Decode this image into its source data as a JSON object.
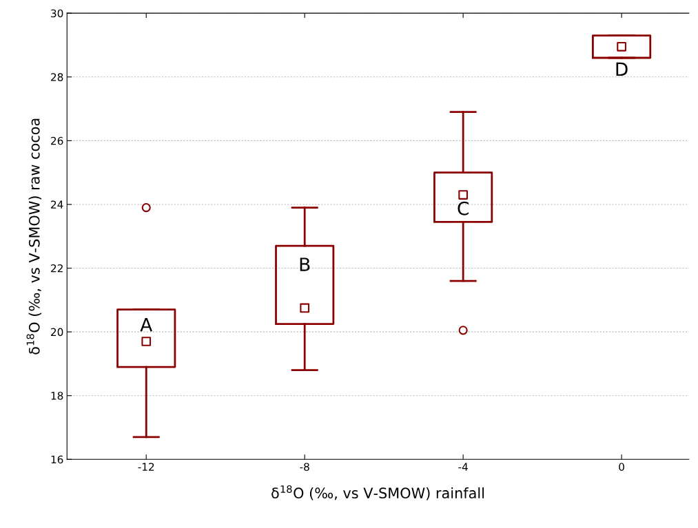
{
  "chart_data": {
    "type": "box",
    "xlabel": "δ$^{18}$O (‰, vs V-SMOW) rainfall",
    "ylabel": "δ$^{18}$O (‰, vs V-SMOW) raw cocoa",
    "x": [
      -12,
      -8,
      -4,
      0
    ],
    "series": [
      {
        "color": "#8b0000",
        "boxes": [
          {
            "low": 16.7,
            "q1": 18.9,
            "median": 19.7,
            "q3": 20.7,
            "high": 20.7,
            "outliers": [
              23.9
            ]
          },
          {
            "low": 18.8,
            "q1": 20.25,
            "median": 20.75,
            "q3": 22.7,
            "high": 23.9
          },
          {
            "low": 21.6,
            "q1": 23.45,
            "median": 24.3,
            "q3": 25.0,
            "high": 26.9,
            "outliers": [
              20.05
            ]
          },
          {
            "low": 28.6,
            "q1": 28.6,
            "median": 28.95,
            "q3": 29.3,
            "high": 29.3
          }
        ]
      }
    ],
    "xlim": [
      -14,
      1.7
    ],
    "xticks": [
      {
        "value": -12,
        "label": "-12"
      },
      {
        "value": -8,
        "label": "-8"
      },
      {
        "value": -4,
        "label": "-4"
      },
      {
        "value": 0,
        "label": "0"
      }
    ],
    "ylim": [
      16,
      30
    ],
    "yticks": [
      16,
      18,
      20,
      22,
      24,
      26,
      28,
      30
    ],
    "grid": "y",
    "marker": "square",
    "annotations": [
      "A",
      "B",
      "C",
      "D"
    ]
  }
}
